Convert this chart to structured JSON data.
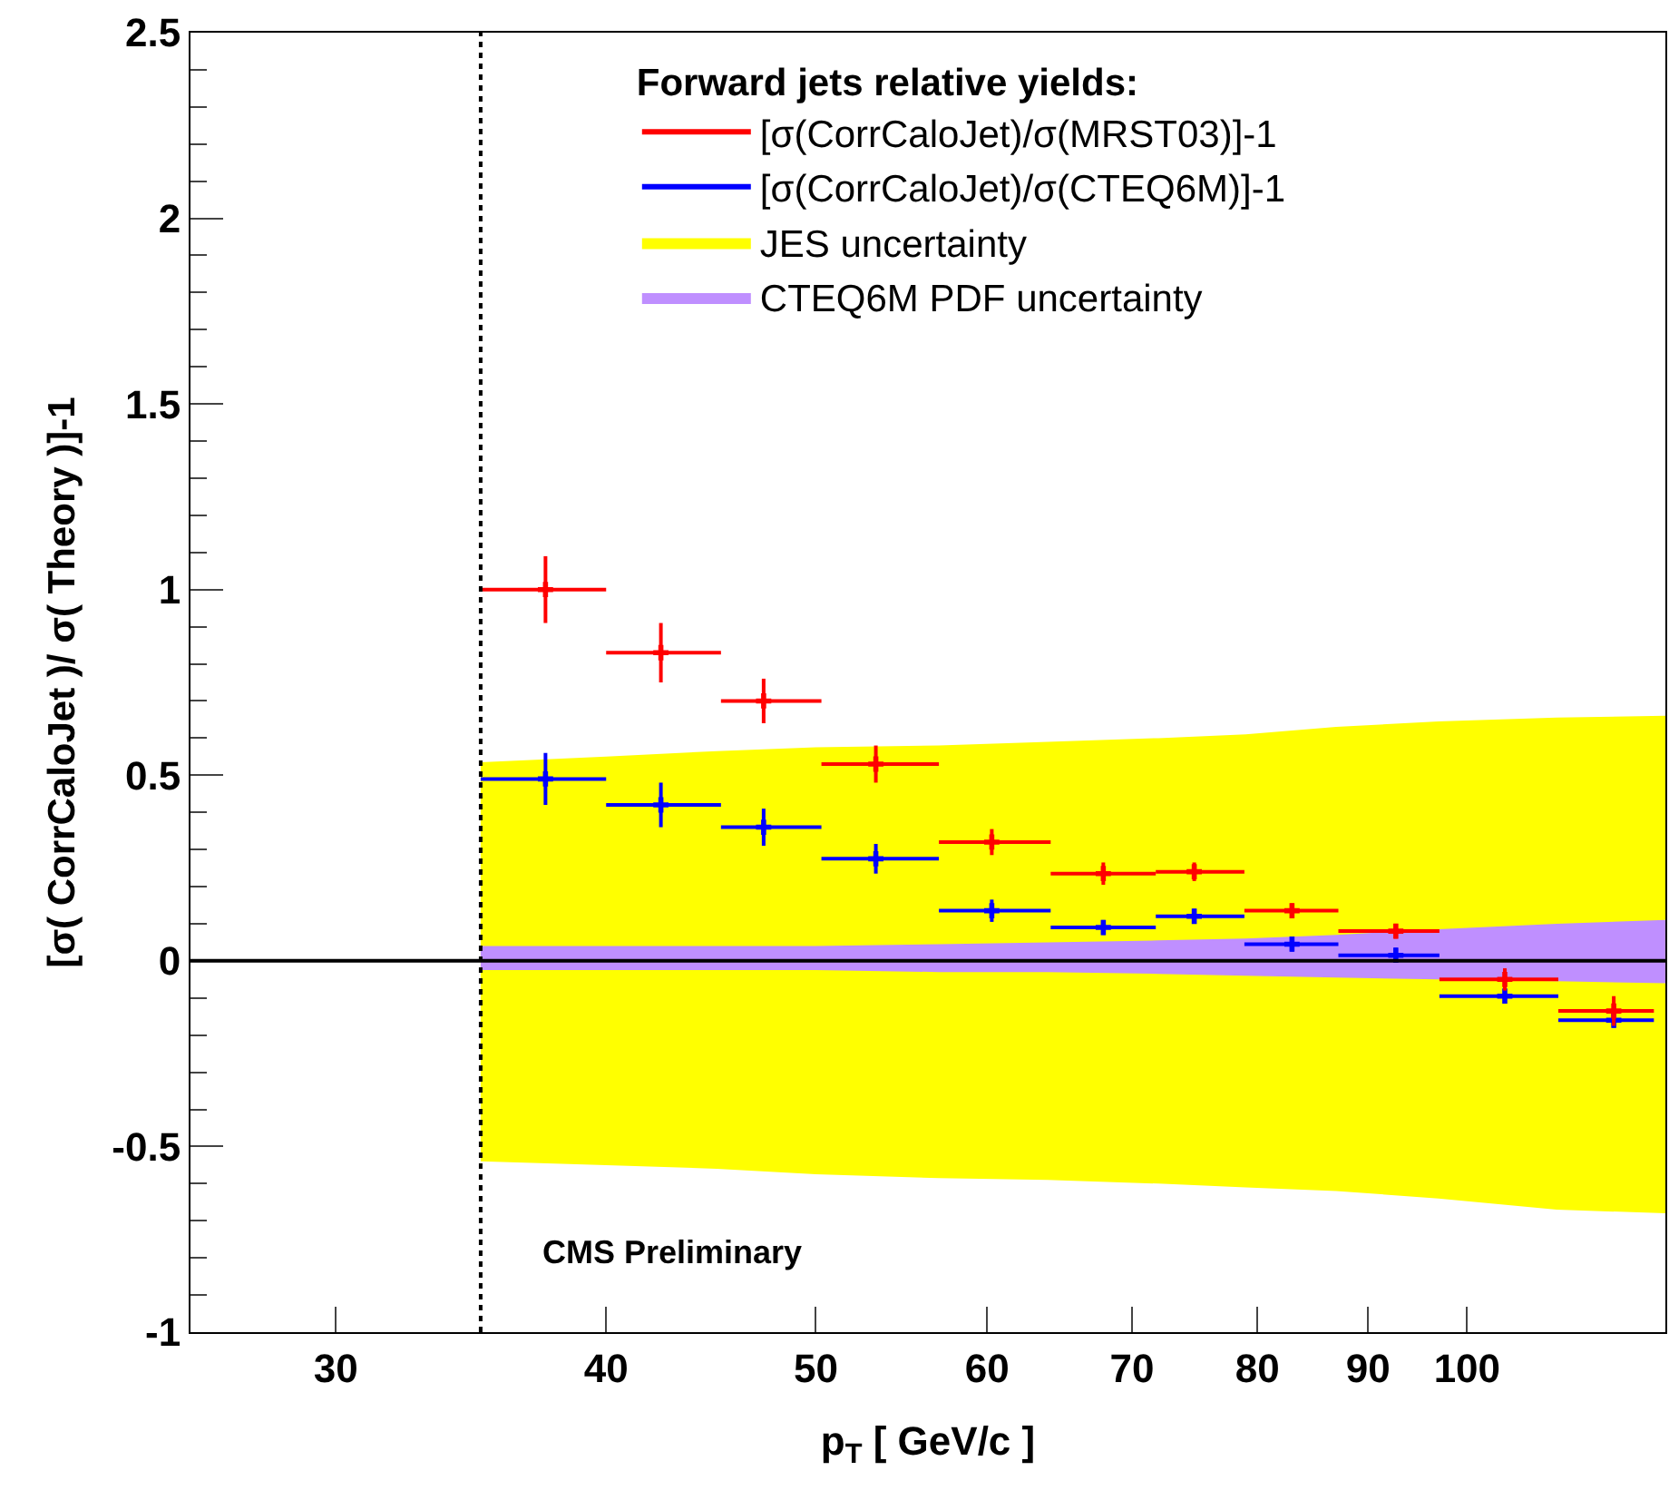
{
  "chart_data": {
    "type": "scatter",
    "legend_title": "Forward jets relative yields:",
    "xlabel": "p$_{T}$ [ GeV/c ]",
    "ylabel": "[σ( CorrCaloJet )/ σ( Theory )]-1",
    "annotations": [
      "CMS Preliminary"
    ],
    "log": "x",
    "grid": false,
    "legend": "top right",
    "marker": "cross",
    "xlim": [
      25.7,
      123.5
    ],
    "xticks": [
      30,
      40,
      50,
      60,
      70,
      80,
      90,
      100
    ],
    "ylim": [
      -1,
      2.5
    ],
    "yticks": [
      -1,
      -0.5,
      0,
      0.5,
      1,
      1.5,
      2,
      2.5
    ],
    "x": [
      37.5,
      42.4,
      47.3,
      53.3,
      60.3,
      67.9,
      74.8,
      83.0,
      92.7,
      104.1,
      116.9
    ],
    "series": [
      {
        "type": "area",
        "name": "JES uncertainty",
        "color": "#ffff00",
        "x": [
          35,
          40,
          45,
          50,
          57,
          64,
          72,
          79,
          87,
          97,
          110,
          123.5
        ],
        "values": [
          null,
          null,
          null,
          null,
          null,
          null,
          null,
          null,
          null,
          null,
          null,
          null
        ],
        "upper": [
          0.535,
          0.55,
          0.565,
          0.575,
          0.58,
          0.59,
          0.6,
          0.61,
          0.63,
          0.645,
          0.655,
          0.66
        ],
        "lower": [
          -0.54,
          -0.55,
          -0.56,
          -0.575,
          -0.585,
          -0.59,
          -0.6,
          -0.61,
          -0.62,
          -0.64,
          -0.67,
          -0.68
        ]
      },
      {
        "type": "area",
        "name": "CTEQ6M PDF uncertainty",
        "color": "#bf8fff",
        "x": [
          35,
          40,
          45,
          50,
          57,
          64,
          72,
          79,
          87,
          97,
          110,
          123.5
        ],
        "values": [
          null,
          null,
          null,
          null,
          null,
          null,
          null,
          null,
          null,
          null,
          null,
          null
        ],
        "upper": [
          0.04,
          0.04,
          0.04,
          0.04,
          0.045,
          0.05,
          0.055,
          0.06,
          0.07,
          0.085,
          0.1,
          0.11
        ],
        "lower": [
          -0.025,
          -0.025,
          -0.025,
          -0.025,
          -0.03,
          -0.03,
          -0.035,
          -0.04,
          -0.045,
          -0.05,
          -0.055,
          -0.06
        ]
      },
      {
        "name": "[σ(CorrCaloJet)/σ(MRST03)]-1",
        "color": "#ff0000",
        "values": [
          1.0,
          0.83,
          0.7,
          0.53,
          0.32,
          0.235,
          0.24,
          0.135,
          0.08,
          -0.05,
          -0.135
        ],
        "errors": [
          0.09,
          0.08,
          0.06,
          0.05,
          0.035,
          0.03,
          0.025,
          0.02,
          0.02,
          0.03,
          0.04
        ],
        "xerrors": [
          [
            35,
            40
          ],
          [
            40,
            45.2
          ],
          [
            45.2,
            50.3
          ],
          [
            50.3,
            57
          ],
          [
            57,
            64.2
          ],
          [
            64.2,
            71.8
          ],
          [
            71.8,
            78.9
          ],
          [
            78.9,
            87.2
          ],
          [
            87.2,
            97.1
          ],
          [
            97.1,
            110.2
          ],
          [
            110.2,
            122
          ]
        ]
      },
      {
        "name": "[σ(CorrCaloJet)/σ(CTEQ6M)]-1",
        "color": "#0000ff",
        "values": [
          0.49,
          0.42,
          0.36,
          0.275,
          0.135,
          0.09,
          0.12,
          0.045,
          0.015,
          -0.095,
          -0.16
        ],
        "errors": [
          0.07,
          0.06,
          0.05,
          0.04,
          0.03,
          0.02,
          0.02,
          0.02,
          0.02,
          0.02,
          0.02
        ],
        "xerrors": [
          [
            35,
            40
          ],
          [
            40,
            45.2
          ],
          [
            45.2,
            50.3
          ],
          [
            50.3,
            57
          ],
          [
            57,
            64.2
          ],
          [
            64.2,
            71.8
          ],
          [
            71.8,
            78.9
          ],
          [
            78.9,
            87.2
          ],
          [
            87.2,
            97.1
          ],
          [
            97.1,
            110.2
          ],
          [
            110.2,
            122
          ]
        ]
      }
    ],
    "ref_lines": [
      {
        "axis": "x",
        "value": 35,
        "color": "#000000",
        "line_style": "dotted"
      },
      {
        "axis": "y",
        "value": 0,
        "color": "#000000",
        "line_style": "solid"
      }
    ]
  }
}
